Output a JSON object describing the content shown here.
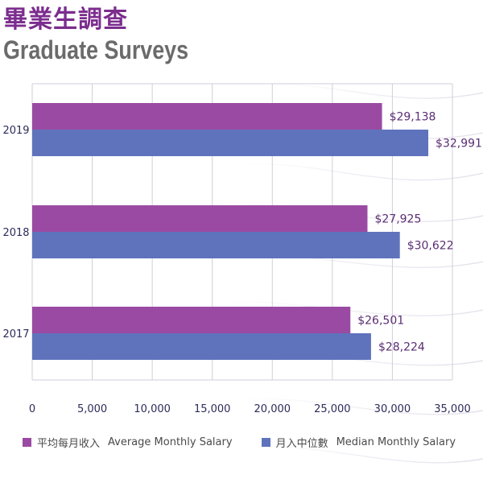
{
  "header": {
    "title_zh": "畢業生調查",
    "title_en": "Graduate Surveys"
  },
  "colors": {
    "average": "#9b4aa3",
    "median": "#5f73bd",
    "value_label": "#5a2d74",
    "axis_text": "#2c2c5a",
    "gridline": "#cfcfd8"
  },
  "chart_data": {
    "type": "bar",
    "orientation": "horizontal",
    "categories": [
      "2019",
      "2018",
      "2017"
    ],
    "series": [
      {
        "name_zh": "平均每月收入",
        "name_en": "Average Monthly Salary",
        "values": [
          29138,
          27925,
          26501
        ],
        "labels": [
          "$29,138",
          "$27,925",
          "$26,501"
        ],
        "color": "#9b4aa3"
      },
      {
        "name_zh": "月入中位數",
        "name_en": "Median Monthly Salary",
        "values": [
          32991,
          30622,
          28224
        ],
        "labels": [
          "$32,991",
          "$30,622",
          "$28,224"
        ],
        "color": "#5f73bd"
      }
    ],
    "xlim": [
      0,
      35000
    ],
    "x_ticks": [
      0,
      5000,
      10000,
      15000,
      20000,
      25000,
      30000,
      35000
    ],
    "x_tick_labels": [
      "0",
      "5,000",
      "10,000",
      "15,000",
      "20,000",
      "25,000",
      "30,000",
      "35,000"
    ],
    "grid": true,
    "legend_position": "bottom"
  }
}
